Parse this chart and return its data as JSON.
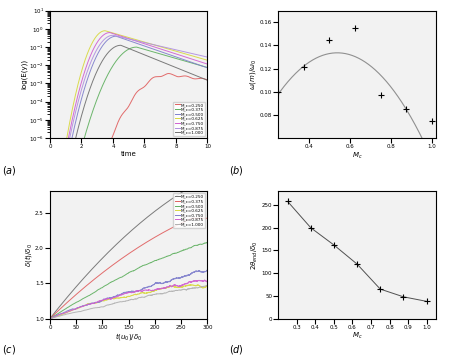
{
  "panel_a": {
    "xlabel": "time",
    "ylabel": "log(E(y))",
    "mach_numbers": [
      0.25,
      0.375,
      0.5,
      0.625,
      0.75,
      0.875,
      1.0
    ],
    "colors": [
      "#e06060",
      "#60b060",
      "#8080cc",
      "#d8d840",
      "#d060d0",
      "#b090e0",
      "#707070"
    ],
    "xlim": [
      0,
      10
    ],
    "ylim": [
      1e-07,
      10.0
    ],
    "legend_labels": [
      "M_c=0.250",
      "M_c=0.375",
      "M_c=0.500",
      "M_c=0.625",
      "M_c=0.750",
      "M_c=0.875",
      "M_c=1.000"
    ]
  },
  "panel_b": {
    "xlabel": "M_c",
    "ylabel": "w(m)/w_0",
    "mach_data": [
      0.25,
      0.375,
      0.5,
      0.625,
      0.75,
      0.875,
      1.0
    ],
    "growth_data": [
      0.1,
      0.121,
      0.145,
      0.155,
      0.097,
      0.085,
      0.075
    ],
    "xlim": [
      0.25,
      1.02
    ],
    "ylim": [
      0.06,
      0.17
    ],
    "yticks": [
      0.08,
      0.1,
      0.12,
      0.14,
      0.16
    ],
    "xticks": [
      0.4,
      0.6,
      0.8,
      1.0
    ]
  },
  "panel_c": {
    "xlabel": "t(u_0)/delta_0",
    "ylabel": "delta(t)/delta_0",
    "mach_numbers": [
      0.25,
      0.375,
      0.5,
      0.625,
      0.75,
      0.875,
      1.0
    ],
    "colors": [
      "#707070",
      "#e06060",
      "#60b060",
      "#d8d840",
      "#8080cc",
      "#d060d0",
      "#b0b0b0"
    ],
    "xlim": [
      0,
      300
    ],
    "ylim": [
      1.0,
      2.8
    ],
    "yticks": [
      1.0,
      1.5,
      2.0,
      2.5
    ],
    "xticks": [
      0,
      50,
      100,
      150,
      200,
      250,
      300
    ],
    "legend_labels": [
      "M_c=0.250",
      "M_c=0.375",
      "M_c=0.500",
      "M_c=0.625",
      "M_c=0.750",
      "M_c=0.875",
      "M_c=1.000"
    ]
  },
  "panel_d": {
    "xlabel": "M_c",
    "ylabel": "2theta_end/delta_0",
    "mach_data": [
      0.25,
      0.375,
      0.5,
      0.625,
      0.75,
      0.875,
      1.0
    ],
    "momentum_data": [
      258,
      200,
      162,
      120,
      65,
      48,
      38
    ],
    "xlim": [
      0.2,
      1.05
    ],
    "ylim": [
      0,
      280
    ],
    "yticks": [
      0,
      50,
      100,
      150,
      200,
      250
    ],
    "xticks": [
      0.3,
      0.4,
      0.5,
      0.6,
      0.7,
      0.8,
      0.9,
      1.0
    ]
  }
}
